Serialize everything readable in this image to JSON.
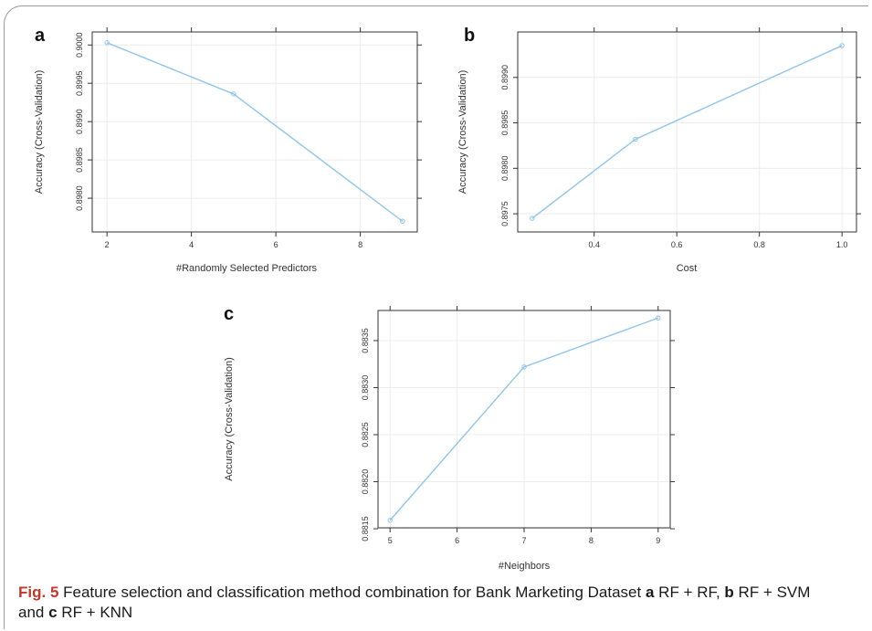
{
  "chart_data": [
    {
      "panel": "a",
      "type": "line",
      "x": [
        2,
        5,
        9
      ],
      "y": [
        0.90003,
        0.89936,
        0.8977
      ],
      "xlabel": "#Randomly Selected Predictors",
      "ylabel": "Accuracy (Cross-Validation)",
      "xticks": [
        2,
        4,
        6,
        8
      ],
      "yticks": [
        "0.8980",
        "0.8985",
        "0.8990",
        "0.8995",
        "0.9000"
      ],
      "xlim": [
        1.65,
        9.35
      ],
      "ylim": [
        0.89756,
        0.90017
      ],
      "grid": true,
      "color": "#8ec4ec"
    },
    {
      "panel": "b",
      "type": "line",
      "x": [
        0.25,
        0.5,
        1.0
      ],
      "y": [
        0.89745,
        0.89832,
        0.89935
      ],
      "xlabel": "Cost",
      "ylabel": "Accuracy (Cross-Validation)",
      "xticks": [
        0.4,
        0.6,
        0.8,
        1.0
      ],
      "yticks": [
        "0.8975",
        "0.8980",
        "0.8985",
        "0.8990"
      ],
      "xlim": [
        0.215,
        1.035
      ],
      "ylim": [
        0.8973,
        0.8995
      ],
      "grid": true,
      "color": "#8ec4ec"
    },
    {
      "panel": "c",
      "type": "line",
      "x": [
        5,
        7,
        9
      ],
      "y": [
        0.88159,
        0.88322,
        0.88374
      ],
      "xlabel": "#Neighbors",
      "ylabel": "Accuracy (Cross-Validation)",
      "xticks": [
        5,
        6,
        7,
        8,
        9
      ],
      "yticks": [
        "0.8815",
        "0.8820",
        "0.8825",
        "0.8830",
        "0.8835"
      ],
      "xlim": [
        4.82,
        9.18
      ],
      "ylim": [
        0.88151,
        0.88382
      ],
      "grid": true,
      "color": "#8ec4ec"
    }
  ],
  "caption": {
    "fig_number": "Fig. 5",
    "text_1": " Feature selection and classification method combination for Bank Marketing Dataset ",
    "a_letter": "a",
    "a_text": " RF + RF, ",
    "b_letter": "b",
    "b_text": " RF + SVM and ",
    "c_letter": "c",
    "c_text": " RF + KNN"
  }
}
